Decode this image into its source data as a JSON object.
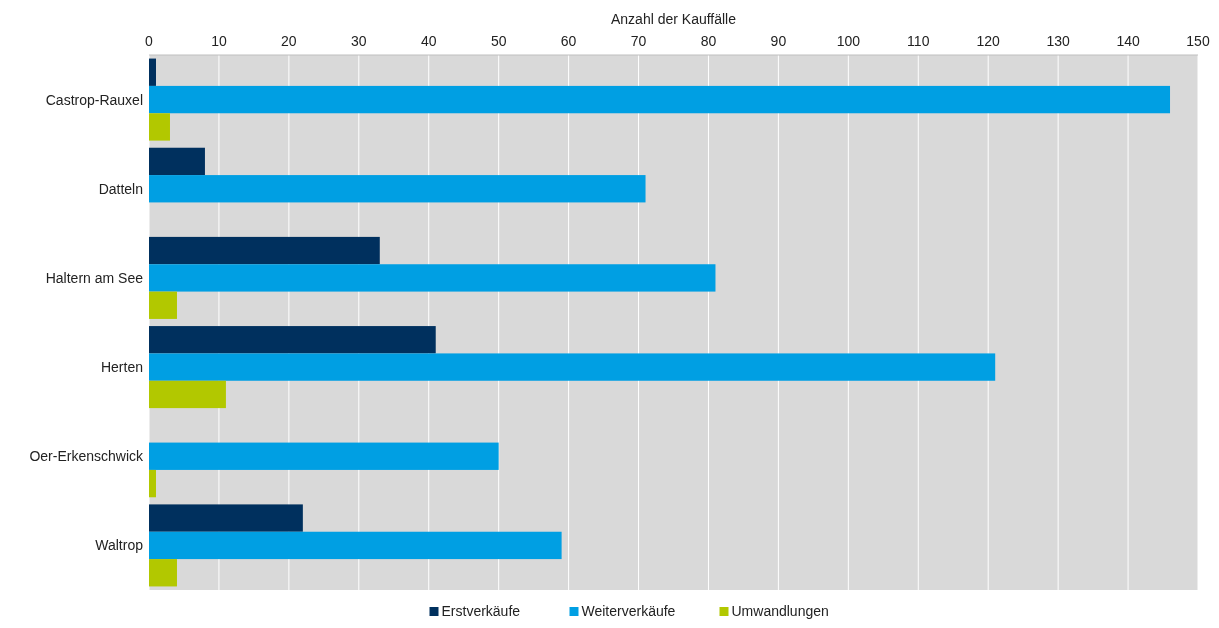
{
  "chart_data": {
    "type": "bar",
    "orientation": "horizontal",
    "xlabel": "Anzahl der Kauffälle",
    "categories": [
      "Castrop-Rauxel",
      "Datteln",
      "Haltern am See",
      "Herten",
      "Oer-Erkenschwick",
      "Waltrop"
    ],
    "series": [
      {
        "name": "Erstverkäufe",
        "color": "#00305e",
        "values": [
          1,
          8,
          33,
          41,
          0,
          22
        ]
      },
      {
        "name": "Weiterverkäufe",
        "color": "#009fe3",
        "values": [
          146,
          71,
          81,
          121,
          50,
          59
        ]
      },
      {
        "name": "Umwandlungen",
        "color": "#b2c800",
        "values": [
          3,
          0,
          4,
          11,
          1,
          4
        ]
      }
    ],
    "xlim": [
      0,
      150
    ],
    "xticks": [
      0,
      10,
      20,
      30,
      40,
      50,
      60,
      70,
      80,
      90,
      100,
      110,
      120,
      130,
      140,
      150
    ],
    "grid": "x",
    "legend": "bottom"
  }
}
